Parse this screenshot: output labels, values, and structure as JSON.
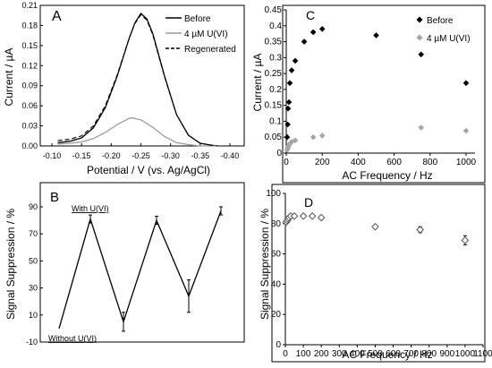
{
  "chart_data": [
    {
      "panel": "A",
      "type": "line",
      "xlabel": "Potential / V (vs. Ag/AgCl)",
      "ylabel": "Current / µA",
      "xlim": [
        -0.1,
        -0.4
      ],
      "ylim": [
        0,
        0.21
      ],
      "x_ticks": [
        "-0.10",
        "-0.15",
        "-0.20",
        "-0.25",
        "-0.30",
        "-0.35",
        "-0.40"
      ],
      "y_ticks": [
        "0.00",
        "0.03",
        "0.06",
        "0.09",
        "0.12",
        "0.15",
        "0.18",
        "0.21"
      ],
      "grid": false,
      "legend_position": "top-right",
      "series": [
        {
          "name": "Before",
          "color": "#000000",
          "style": "solid",
          "x": [
            -0.11,
            -0.13,
            -0.15,
            -0.17,
            -0.19,
            -0.21,
            -0.23,
            -0.24,
            -0.25,
            -0.26,
            -0.27,
            -0.29,
            -0.31,
            -0.33,
            -0.35,
            -0.37,
            -0.38
          ],
          "values": [
            0.005,
            0.007,
            0.012,
            0.027,
            0.057,
            0.104,
            0.16,
            0.184,
            0.198,
            0.19,
            0.168,
            0.104,
            0.047,
            0.016,
            0.004,
            0.001,
            0.0
          ]
        },
        {
          "name": "4 µM U(VI)",
          "color": "#9a9a9a",
          "style": "solid",
          "x": [
            -0.11,
            -0.13,
            -0.15,
            -0.17,
            -0.19,
            -0.21,
            -0.23,
            -0.235,
            -0.25,
            -0.27,
            -0.29,
            -0.31,
            -0.33,
            -0.35,
            -0.37,
            -0.38
          ],
          "values": [
            0.003,
            0.004,
            0.006,
            0.011,
            0.02,
            0.032,
            0.041,
            0.042,
            0.039,
            0.028,
            0.014,
            0.005,
            0.002,
            0.0,
            0.0,
            0.0
          ]
        },
        {
          "name": "Regenerated",
          "color": "#000000",
          "style": "dashed",
          "x": [
            -0.11,
            -0.13,
            -0.15,
            -0.17,
            -0.19,
            -0.21,
            -0.23,
            -0.24,
            -0.25,
            -0.26,
            -0.27,
            -0.29,
            -0.31,
            -0.33,
            -0.35,
            -0.37,
            -0.38
          ],
          "values": [
            0.008,
            0.01,
            0.015,
            0.03,
            0.06,
            0.106,
            0.16,
            0.183,
            0.196,
            0.188,
            0.166,
            0.103,
            0.047,
            0.016,
            0.004,
            0.001,
            0.0
          ]
        }
      ]
    },
    {
      "panel": "B",
      "type": "line",
      "xlabel": "",
      "ylabel": "Signal Suppression / %",
      "ylim": [
        -10,
        90
      ],
      "y_ticks": [
        "-10",
        "10",
        "30",
        "50",
        "70",
        "90"
      ],
      "grid": false,
      "annotations": [
        "With U(VI)",
        "Without U(VI)"
      ],
      "series": [
        {
          "name": "",
          "color": "#000000",
          "x": [
            0,
            1,
            2,
            3,
            4,
            5
          ],
          "values": [
            0,
            81,
            5,
            80,
            24,
            87
          ],
          "errors": [
            0,
            3,
            7,
            3,
            12,
            3
          ]
        }
      ]
    },
    {
      "panel": "C",
      "type": "scatter",
      "xlabel": "AC Frequency / Hz",
      "ylabel": "Current / µA",
      "xlim": [
        0,
        1000
      ],
      "ylim": [
        0,
        0.45
      ],
      "x_ticks": [
        "0",
        "200",
        "400",
        "600",
        "800",
        "1000"
      ],
      "y_ticks": [
        "0",
        "0.05",
        "0.1",
        "0.15",
        "0.2",
        "0.25",
        "0.3",
        "0.35",
        "0.4",
        "0.45"
      ],
      "grid": false,
      "legend_position": "top-right",
      "series": [
        {
          "name": "Before",
          "color": "#000000",
          "x": [
            5,
            8,
            10,
            15,
            20,
            30,
            50,
            100,
            150,
            200,
            500,
            750,
            1000
          ],
          "values": [
            0.05,
            0.09,
            0.14,
            0.16,
            0.22,
            0.26,
            0.29,
            0.35,
            0.38,
            0.39,
            0.37,
            0.31,
            0.22
          ]
        },
        {
          "name": "4 µM U(VI)",
          "color": "#a6a6a6",
          "x": [
            5,
            8,
            10,
            15,
            20,
            30,
            50,
            150,
            200,
            750,
            1000
          ],
          "values": [
            0.01,
            0.015,
            0.02,
            0.025,
            0.03,
            0.035,
            0.04,
            0.05,
            0.055,
            0.08,
            0.07
          ]
        }
      ]
    },
    {
      "panel": "D",
      "type": "scatter",
      "xlabel": "AC Frequency / Hz",
      "ylabel": "Signal Suppression / %",
      "xlim": [
        0,
        1100
      ],
      "ylim": [
        0,
        100
      ],
      "x_ticks": [
        "0",
        "100",
        "200",
        "300",
        "400",
        "500",
        "600",
        "700",
        "800",
        "900",
        "1000",
        "1100"
      ],
      "y_ticks": [
        "0",
        "20",
        "40",
        "60",
        "80",
        "100"
      ],
      "grid": false,
      "series": [
        {
          "name": "",
          "color": "#000000",
          "marker": "open-diamond",
          "x": [
            5,
            10,
            15,
            20,
            30,
            50,
            100,
            150,
            200,
            500,
            750,
            1000
          ],
          "values": [
            81,
            82,
            83,
            84,
            85,
            85,
            85,
            85,
            84,
            78,
            76,
            69
          ],
          "errors": [
            1,
            1,
            1,
            1,
            1,
            1,
            1,
            1,
            1,
            1,
            2,
            3
          ]
        }
      ]
    }
  ]
}
